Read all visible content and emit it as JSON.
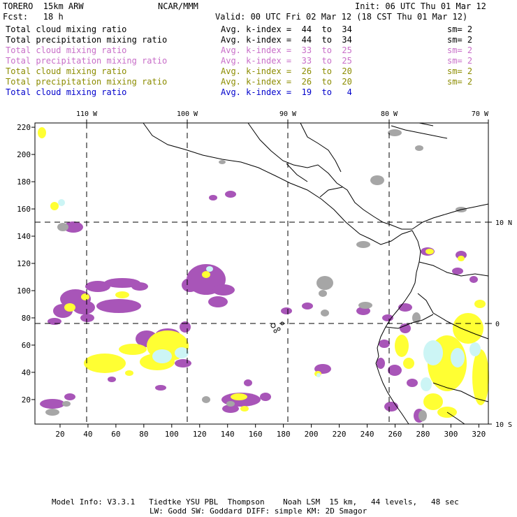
{
  "header": {
    "model": "TORERO  15km ARW",
    "org": "NCAR/MMM",
    "init": "Init: 06 UTC Thu 01 Mar 12",
    "fcst": "Fcst:   18 h",
    "valid": "Valid: 00 UTC Fri 02 Mar 12 (18 CST Thu 01 Mar 12)"
  },
  "legend": [
    {
      "field": "Total cloud mixing ratio",
      "kindex": "Avg. k-index =  44  to  34",
      "sm": "sm= 2",
      "color": "#000000"
    },
    {
      "field": "Total precipitation mixing ratio",
      "kindex": "Avg. k-index =  44  to  34",
      "sm": "sm= 2",
      "color": "#000000"
    },
    {
      "field": "Total cloud mixing ratio",
      "kindex": "Avg. k-index =  33  to  25",
      "sm": "sm= 2",
      "color": "#c86ec8"
    },
    {
      "field": "Total precipitation mixing ratio",
      "kindex": "Avg. k-index =  33  to  25",
      "sm": "sm= 2",
      "color": "#c86ec8"
    },
    {
      "field": "Total cloud mixing ratio",
      "kindex": "Avg. k-index =  26  to  20",
      "sm": "sm= 2",
      "color": "#8c8c00"
    },
    {
      "field": "Total precipitation mixing ratio",
      "kindex": "Avg. k-index =  26  to  20",
      "sm": "sm= 2",
      "color": "#8c8c00"
    },
    {
      "field": "Total cloud mixing ratio",
      "kindex": "Avg. k-index =  19  to   4",
      "sm": "",
      "color": "#0000cc"
    }
  ],
  "map": {
    "lon_labels": [
      "110 W",
      "100 W",
      "90 W",
      "80 W",
      "70 W"
    ],
    "lat_labels": [
      "10 N",
      "0",
      "10 S"
    ],
    "y_ticks": [
      "20",
      "40",
      "60",
      "80",
      "100",
      "120",
      "140",
      "160",
      "180",
      "200",
      "220"
    ],
    "x_ticks": [
      "20",
      "40",
      "60",
      "80",
      "100",
      "120",
      "140",
      "160",
      "180",
      "200",
      "220",
      "240",
      "260",
      "280",
      "300",
      "320"
    ],
    "colors": {
      "purple": "#a855b8",
      "yellow": "#ffff33",
      "lightcyan": "#ccf5f5",
      "gray": "#a6a6a6",
      "coast": "#000000"
    }
  },
  "footer": {
    "line1": "Model Info: V3.3.1   Tiedtke YSU PBL  Thompson    Noah LSM  15 km,   44 levels,   48 sec",
    "line2": "LW: Godd SW: Goddard DIFF: simple KM: 2D Smagor"
  }
}
